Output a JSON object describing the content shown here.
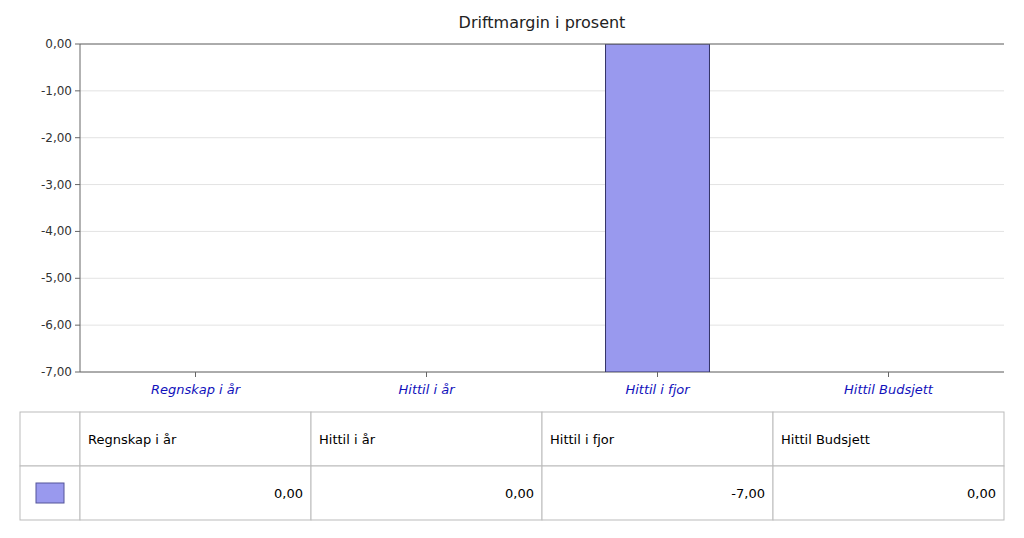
{
  "chart_data": {
    "type": "bar",
    "title": "Driftmargin i prosent",
    "categories": [
      "Regnskap i år",
      "Hittil i år",
      "Hittil i fjor",
      "Hittil Budsjett"
    ],
    "values": [
      0.0,
      0.0,
      -7.0,
      0.0
    ],
    "value_labels": [
      "0,00",
      "0,00",
      "-7,00",
      "0,00"
    ],
    "color": "#9999ee",
    "ylim": [
      -7.0,
      0.0
    ],
    "yticks": [
      {
        "value": 0.0,
        "label": "0,00"
      },
      {
        "value": -1.0,
        "label": "-1,00"
      },
      {
        "value": -2.0,
        "label": "-2,00"
      },
      {
        "value": -3.0,
        "label": "-3,00"
      },
      {
        "value": -4.0,
        "label": "-4,00"
      },
      {
        "value": -5.0,
        "label": "-5,00"
      },
      {
        "value": -6.0,
        "label": "-6,00"
      },
      {
        "value": -7.0,
        "label": "-7,00"
      }
    ],
    "grid": true
  }
}
